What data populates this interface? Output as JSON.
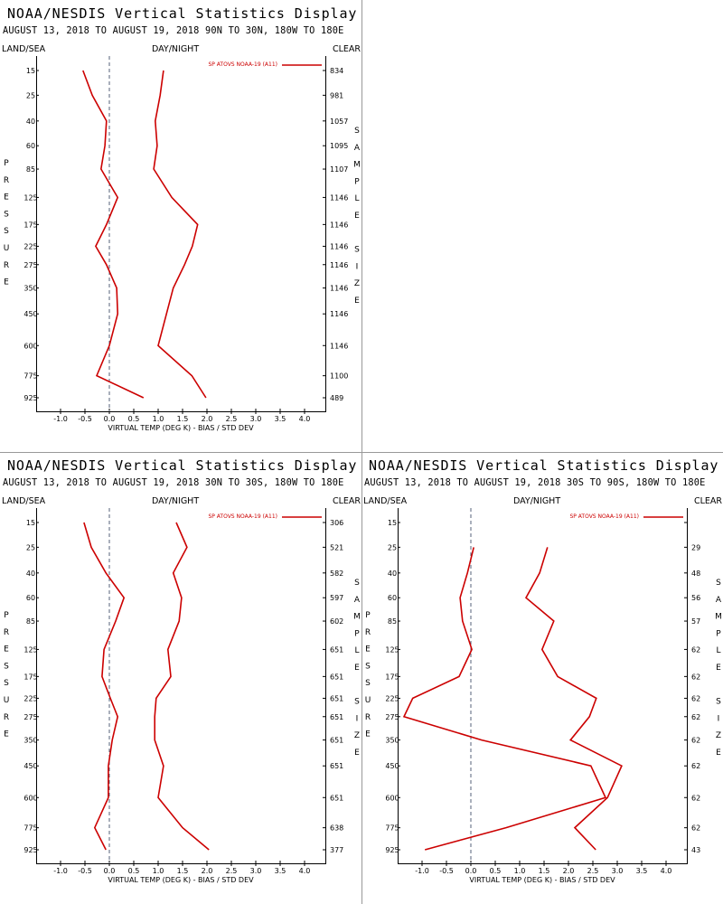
{
  "chart_data": [
    {
      "type": "line",
      "title": "NOAA/NESDIS Vertical Statistics Display",
      "subtitle": "AUGUST 13, 2018 TO AUGUST 19, 2018  90N TO 30N, 180W TO 180E",
      "left_label": "LAND/SEA",
      "center_label": "DAY/NIGHT",
      "right_label": "CLEAR",
      "y_axis_label": "PRESSURE",
      "y2_axis_label": "SAMPLE SIZE",
      "x_axis_label": "VIRTUAL TEMP (DEG K) - BIAS / STD DEV",
      "categories": [
        15,
        25,
        40,
        60,
        85,
        125,
        175,
        225,
        275,
        350,
        450,
        600,
        775,
        925
      ],
      "series": [
        {
          "name": "SP ATOVS NOAA-19 (A11)",
          "color": "#cc0000",
          "bias": [
            -0.54,
            -0.35,
            -0.06,
            -0.09,
            -0.17,
            0.17,
            -0.06,
            -0.28,
            -0.06,
            0.15,
            0.17,
            0.0,
            -0.26,
            0.7
          ],
          "std_dev": [
            1.11,
            1.04,
            0.94,
            0.98,
            0.91,
            1.28,
            1.81,
            1.7,
            1.54,
            1.31,
            1.17,
            1.0,
            1.69,
            1.98
          ]
        }
      ],
      "sample_size": [
        834,
        981,
        1057,
        1095,
        1107,
        1146,
        1146,
        1146,
        1146,
        1146,
        1146,
        1146,
        1100,
        489
      ],
      "xlim": [
        -1.5,
        4.5
      ],
      "xticks": [
        {
          "value": -1,
          "label": "-1.0"
        },
        -0.5,
        {
          "value": 0,
          "label": "0.0"
        },
        0.5,
        {
          "value": 1,
          "label": "1.0"
        },
        1.5,
        {
          "value": 2,
          "label": "2.0"
        },
        2.5,
        {
          "value": 3,
          "label": "3.0"
        },
        3.5,
        {
          "value": 4,
          "label": "4.0"
        }
      ]
    },
    {
      "type": "line",
      "title": "NOAA/NESDIS Vertical Statistics Display",
      "subtitle": "AUGUST 13, 2018 TO AUGUST 19, 2018  30N TO 30S, 180W TO 180E",
      "left_label": "LAND/SEA",
      "center_label": "DAY/NIGHT",
      "right_label": "CLEAR",
      "y_axis_label": "PRESSURE",
      "y2_axis_label": "SAMPLE SIZE",
      "x_axis_label": "VIRTUAL TEMP (DEG K) - BIAS / STD DEV",
      "categories": [
        15,
        25,
        40,
        60,
        85,
        125,
        175,
        225,
        275,
        350,
        450,
        600,
        775,
        925
      ],
      "series": [
        {
          "name": "SP ATOVS NOAA-19 (A11)",
          "color": "#cc0000",
          "bias": [
            -0.52,
            -0.37,
            -0.07,
            0.3,
            0.13,
            -0.11,
            -0.15,
            0.02,
            0.17,
            0.06,
            -0.02,
            -0.02,
            -0.3,
            -0.07
          ],
          "std_dev": [
            1.37,
            1.59,
            1.31,
            1.48,
            1.43,
            1.2,
            1.26,
            0.96,
            0.93,
            0.93,
            1.11,
            1.0,
            1.5,
            2.04
          ]
        }
      ],
      "sample_size": [
        306,
        521,
        582,
        597,
        602,
        651,
        651,
        651,
        651,
        651,
        651,
        651,
        638,
        377
      ],
      "xlim": [
        -1.5,
        4.5
      ],
      "xticks": [
        {
          "value": -1,
          "label": "-1.0"
        },
        -0.5,
        {
          "value": 0,
          "label": "0.0"
        },
        0.5,
        {
          "value": 1,
          "label": "1.0"
        },
        1.5,
        {
          "value": 2,
          "label": "2.0"
        },
        2.5,
        {
          "value": 3,
          "label": "3.0"
        },
        3.5,
        {
          "value": 4,
          "label": "4.0"
        }
      ]
    },
    {
      "type": "line",
      "title": "NOAA/NESDIS Vertical Statistics Display",
      "subtitle": "AUGUST 13, 2018 TO AUGUST 19, 2018  30S TO 90S, 180W TO 180E",
      "left_label": "LAND/SEA",
      "center_label": "DAY/NIGHT",
      "right_label": "CLEAR",
      "y_axis_label": "PRESSURE",
      "y2_axis_label": "SAMPLE SIZE",
      "x_axis_label": "VIRTUAL TEMP (DEG K) - BIAS / STD DEV",
      "categories": [
        15,
        25,
        40,
        60,
        85,
        125,
        175,
        225,
        275,
        350,
        450,
        600,
        775,
        925
      ],
      "series": [
        {
          "name": "SP ATOVS NOAA-19 (A11)",
          "color": "#cc0000",
          "bias": [
            null,
            0.06,
            -0.07,
            -0.22,
            -0.17,
            0.02,
            -0.24,
            -1.19,
            -1.37,
            0.22,
            2.46,
            2.76,
            0.72,
            -0.94
          ],
          "std_dev": [
            null,
            1.57,
            1.41,
            1.13,
            1.7,
            1.46,
            1.78,
            2.57,
            2.43,
            2.04,
            3.09,
            2.8,
            2.13,
            2.56
          ]
        }
      ],
      "sample_size": [
        null,
        29,
        48,
        56,
        57,
        62,
        62,
        62,
        62,
        62,
        62,
        62,
        62,
        43
      ],
      "xlim": [
        -1.5,
        4.5
      ],
      "xticks": [
        {
          "value": -1,
          "label": "-1.0"
        },
        -0.5,
        {
          "value": 0,
          "label": "0.0"
        },
        0.5,
        {
          "value": 1,
          "label": "1.0"
        },
        1.5,
        {
          "value": 2,
          "label": "2.0"
        },
        2.5,
        {
          "value": 3,
          "label": "3.0"
        },
        3.5,
        {
          "value": 4,
          "label": "4.0"
        }
      ]
    }
  ]
}
